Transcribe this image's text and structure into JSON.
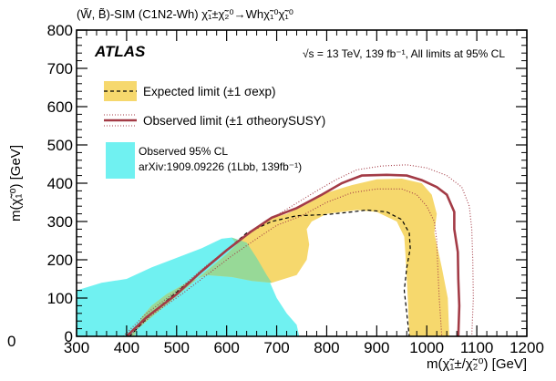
{
  "title": "(W̃, B̃)-SIM (C1N2-Wh) χ̃₁±χ̃₂⁰→Whχ̃₁⁰χ̃₁⁰",
  "atlas_label": "ATLAS",
  "energy_label": "√s = 13 TeV, 139 fb⁻¹, All limits at 95% CL",
  "colors": {
    "expected_band": "#f6d86d",
    "observed_line": "#a33b46",
    "observed_cl_fill": "#70f1f1",
    "overlap_fill": "#8dd99b",
    "frame": "#000000"
  },
  "chart_data": {
    "type": "area",
    "xlabel": "m(χ̃₁±/χ̃₂⁰) [GeV]",
    "ylabel": "m(χ̃₁⁰) [GeV]",
    "xlim": [
      300,
      1200
    ],
    "ylim": [
      0,
      800
    ],
    "x_ticks": [
      "300",
      "400",
      "500",
      "600",
      "700",
      "800",
      "900",
      "1000",
      "1100",
      "1200"
    ],
    "y_ticks": [
      "0",
      "100",
      "200",
      "300",
      "400",
      "500",
      "600",
      "700",
      "800"
    ],
    "edge_tick_label": "0",
    "grid": false,
    "legend_placement": "top-left",
    "legend": {
      "expected": "Expected limit (±1 σexp)",
      "observed": "Observed limit (±1 σtheorySUSY)",
      "observed_cl_line1": "Observed 95% CL",
      "observed_cl_line2": "arXiv:1909.09226 (1Lbb, 139fb⁻¹)"
    },
    "expected_band": {
      "outer": [
        [
          404,
          0
        ],
        [
          450,
          50
        ],
        [
          500,
          105
        ],
        [
          550,
          160
        ],
        [
          600,
          215
        ],
        [
          640,
          265
        ],
        [
          680,
          305
        ],
        [
          720,
          320
        ],
        [
          760,
          345
        ],
        [
          800,
          375
        ],
        [
          850,
          395
        ],
        [
          900,
          410
        ],
        [
          950,
          412
        ],
        [
          990,
          400
        ],
        [
          1010,
          370
        ],
        [
          1020,
          320
        ],
        [
          1015,
          270
        ],
        [
          1030,
          180
        ],
        [
          1042,
          100
        ],
        [
          1045,
          0
        ]
      ],
      "inner": [
        [
          965,
          0
        ],
        [
          962,
          100
        ],
        [
          958,
          200
        ],
        [
          955,
          260
        ],
        [
          940,
          300
        ],
        [
          900,
          325
        ],
        [
          860,
          330
        ],
        [
          800,
          320
        ],
        [
          770,
          300
        ],
        [
          760,
          280
        ],
        [
          765,
          240
        ],
        [
          760,
          200
        ],
        [
          740,
          160
        ],
        [
          690,
          140
        ],
        [
          650,
          145
        ],
        [
          610,
          155
        ],
        [
          560,
          160
        ],
        [
          520,
          140
        ],
        [
          480,
          110
        ],
        [
          450,
          80
        ],
        [
          430,
          50
        ],
        [
          415,
          0
        ]
      ]
    },
    "expected_line": [
      [
        406,
        0
      ],
      [
        450,
        60
      ],
      [
        500,
        115
      ],
      [
        550,
        170
      ],
      [
        600,
        225
      ],
      [
        640,
        270
      ],
      [
        690,
        300
      ],
      [
        740,
        315
      ],
      [
        800,
        318
      ],
      [
        850,
        325
      ],
      [
        880,
        330
      ],
      [
        920,
        325
      ],
      [
        950,
        305
      ],
      [
        965,
        270
      ],
      [
        967,
        230
      ],
      [
        960,
        180
      ],
      [
        955,
        120
      ],
      [
        960,
        60
      ],
      [
        965,
        0
      ]
    ],
    "observed_line": [
      [
        400,
        0
      ],
      [
        440,
        50
      ],
      [
        500,
        110
      ],
      [
        550,
        170
      ],
      [
        600,
        225
      ],
      [
        650,
        275
      ],
      [
        690,
        310
      ],
      [
        740,
        335
      ],
      [
        790,
        370
      ],
      [
        830,
        400
      ],
      [
        870,
        420
      ],
      [
        920,
        422
      ],
      [
        960,
        420
      ],
      [
        990,
        408
      ],
      [
        1020,
        390
      ],
      [
        1040,
        370
      ],
      [
        1055,
        325
      ],
      [
        1055,
        280
      ],
      [
        1062,
        220
      ],
      [
        1063,
        150
      ],
      [
        1065,
        80
      ],
      [
        1063,
        0
      ]
    ],
    "observed_plus": [
      [
        393,
        0
      ],
      [
        440,
        60
      ],
      [
        500,
        118
      ],
      [
        560,
        185
      ],
      [
        620,
        245
      ],
      [
        680,
        300
      ],
      [
        730,
        340
      ],
      [
        780,
        380
      ],
      [
        820,
        410
      ],
      [
        860,
        435
      ],
      [
        910,
        445
      ],
      [
        960,
        448
      ],
      [
        1000,
        440
      ],
      [
        1040,
        420
      ],
      [
        1070,
        390
      ],
      [
        1085,
        340
      ],
      [
        1090,
        280
      ],
      [
        1092,
        200
      ],
      [
        1093,
        100
      ],
      [
        1090,
        0
      ]
    ],
    "observed_minus": [
      [
        405,
        0
      ],
      [
        450,
        55
      ],
      [
        510,
        110
      ],
      [
        560,
        160
      ],
      [
        610,
        210
      ],
      [
        660,
        255
      ],
      [
        700,
        290
      ],
      [
        750,
        315
      ],
      [
        800,
        350
      ],
      [
        850,
        375
      ],
      [
        900,
        385
      ],
      [
        950,
        385
      ],
      [
        980,
        370
      ],
      [
        1000,
        340
      ],
      [
        1015,
        300
      ],
      [
        1020,
        250
      ],
      [
        1022,
        180
      ],
      [
        1025,
        100
      ],
      [
        1030,
        0
      ]
    ],
    "observed_cl_region": [
      [
        300,
        0
      ],
      [
        300,
        120
      ],
      [
        350,
        140
      ],
      [
        400,
        150
      ],
      [
        450,
        180
      ],
      [
        500,
        205
      ],
      [
        550,
        230
      ],
      [
        590,
        255
      ],
      [
        610,
        258
      ],
      [
        640,
        245
      ],
      [
        660,
        205
      ],
      [
        680,
        160
      ],
      [
        700,
        100
      ],
      [
        720,
        60
      ],
      [
        740,
        30
      ],
      [
        745,
        0
      ]
    ]
  }
}
